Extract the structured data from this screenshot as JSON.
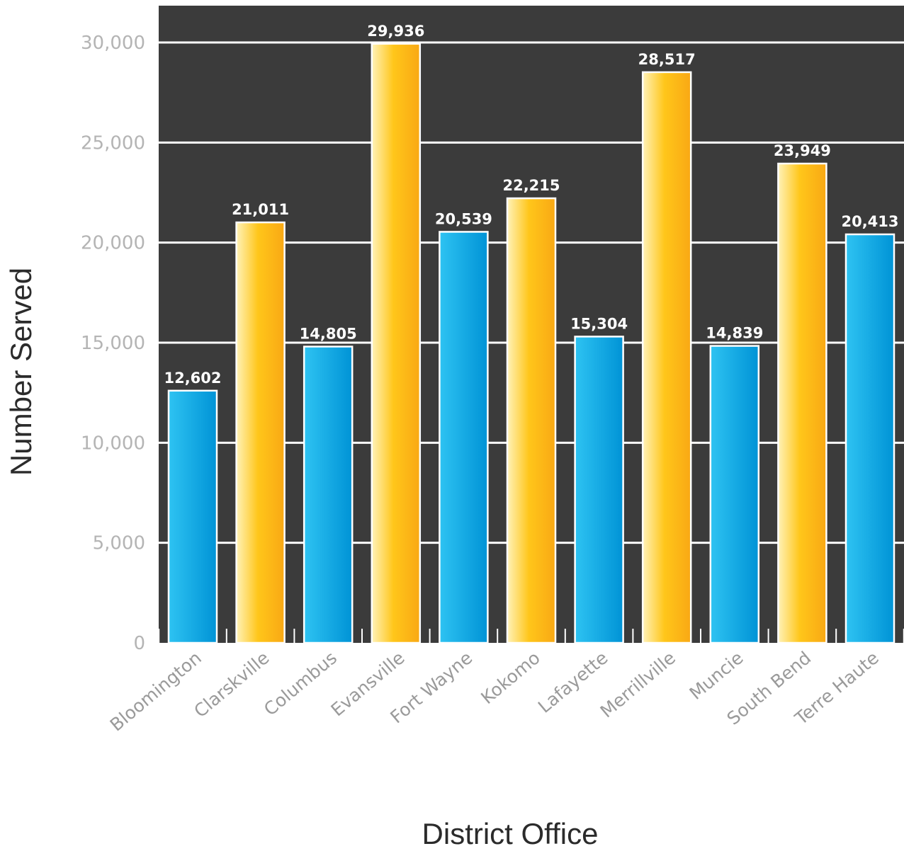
{
  "chart_data": {
    "type": "bar",
    "title": "",
    "xlabel": "District Office",
    "ylabel": "Number  Served",
    "categories": [
      "Bloomington",
      "Clarskville",
      "Columbus",
      "Evansville",
      "Fort Wayne",
      "Kokomo",
      "Lafayette",
      "Merrillville",
      "Muncie",
      "South Bend",
      "Terre Haute"
    ],
    "values": [
      12602,
      21011,
      14805,
      29936,
      20539,
      22215,
      15304,
      28517,
      14839,
      23949,
      20413
    ],
    "value_labels": [
      "12,602",
      "21,011",
      "14,805",
      "29,936",
      "20,539",
      "22,215",
      "15,304",
      "28,517",
      "14,839",
      "23,949",
      "20,413"
    ],
    "bar_colors": [
      "blue",
      "orange",
      "blue",
      "orange",
      "blue",
      "orange",
      "blue",
      "orange",
      "blue",
      "orange",
      "blue"
    ],
    "ylim": [
      0,
      30000
    ],
    "yticks": [
      0,
      5000,
      10000,
      15000,
      20000,
      25000,
      30000
    ],
    "ytick_labels": [
      "0",
      "5,000",
      "10,000",
      "15,000",
      "20,000",
      "25,000",
      "30,000"
    ],
    "grid": true,
    "legend": "none",
    "colors": {
      "plot_background": "#3b3b3b",
      "gridline": "#ffffff",
      "blue_light": "#2ec3f2",
      "blue_dark": "#0093d6",
      "orange_light": "#fff2b8",
      "orange_mid": "#ffc61a",
      "orange_dark": "#f9a814"
    }
  }
}
